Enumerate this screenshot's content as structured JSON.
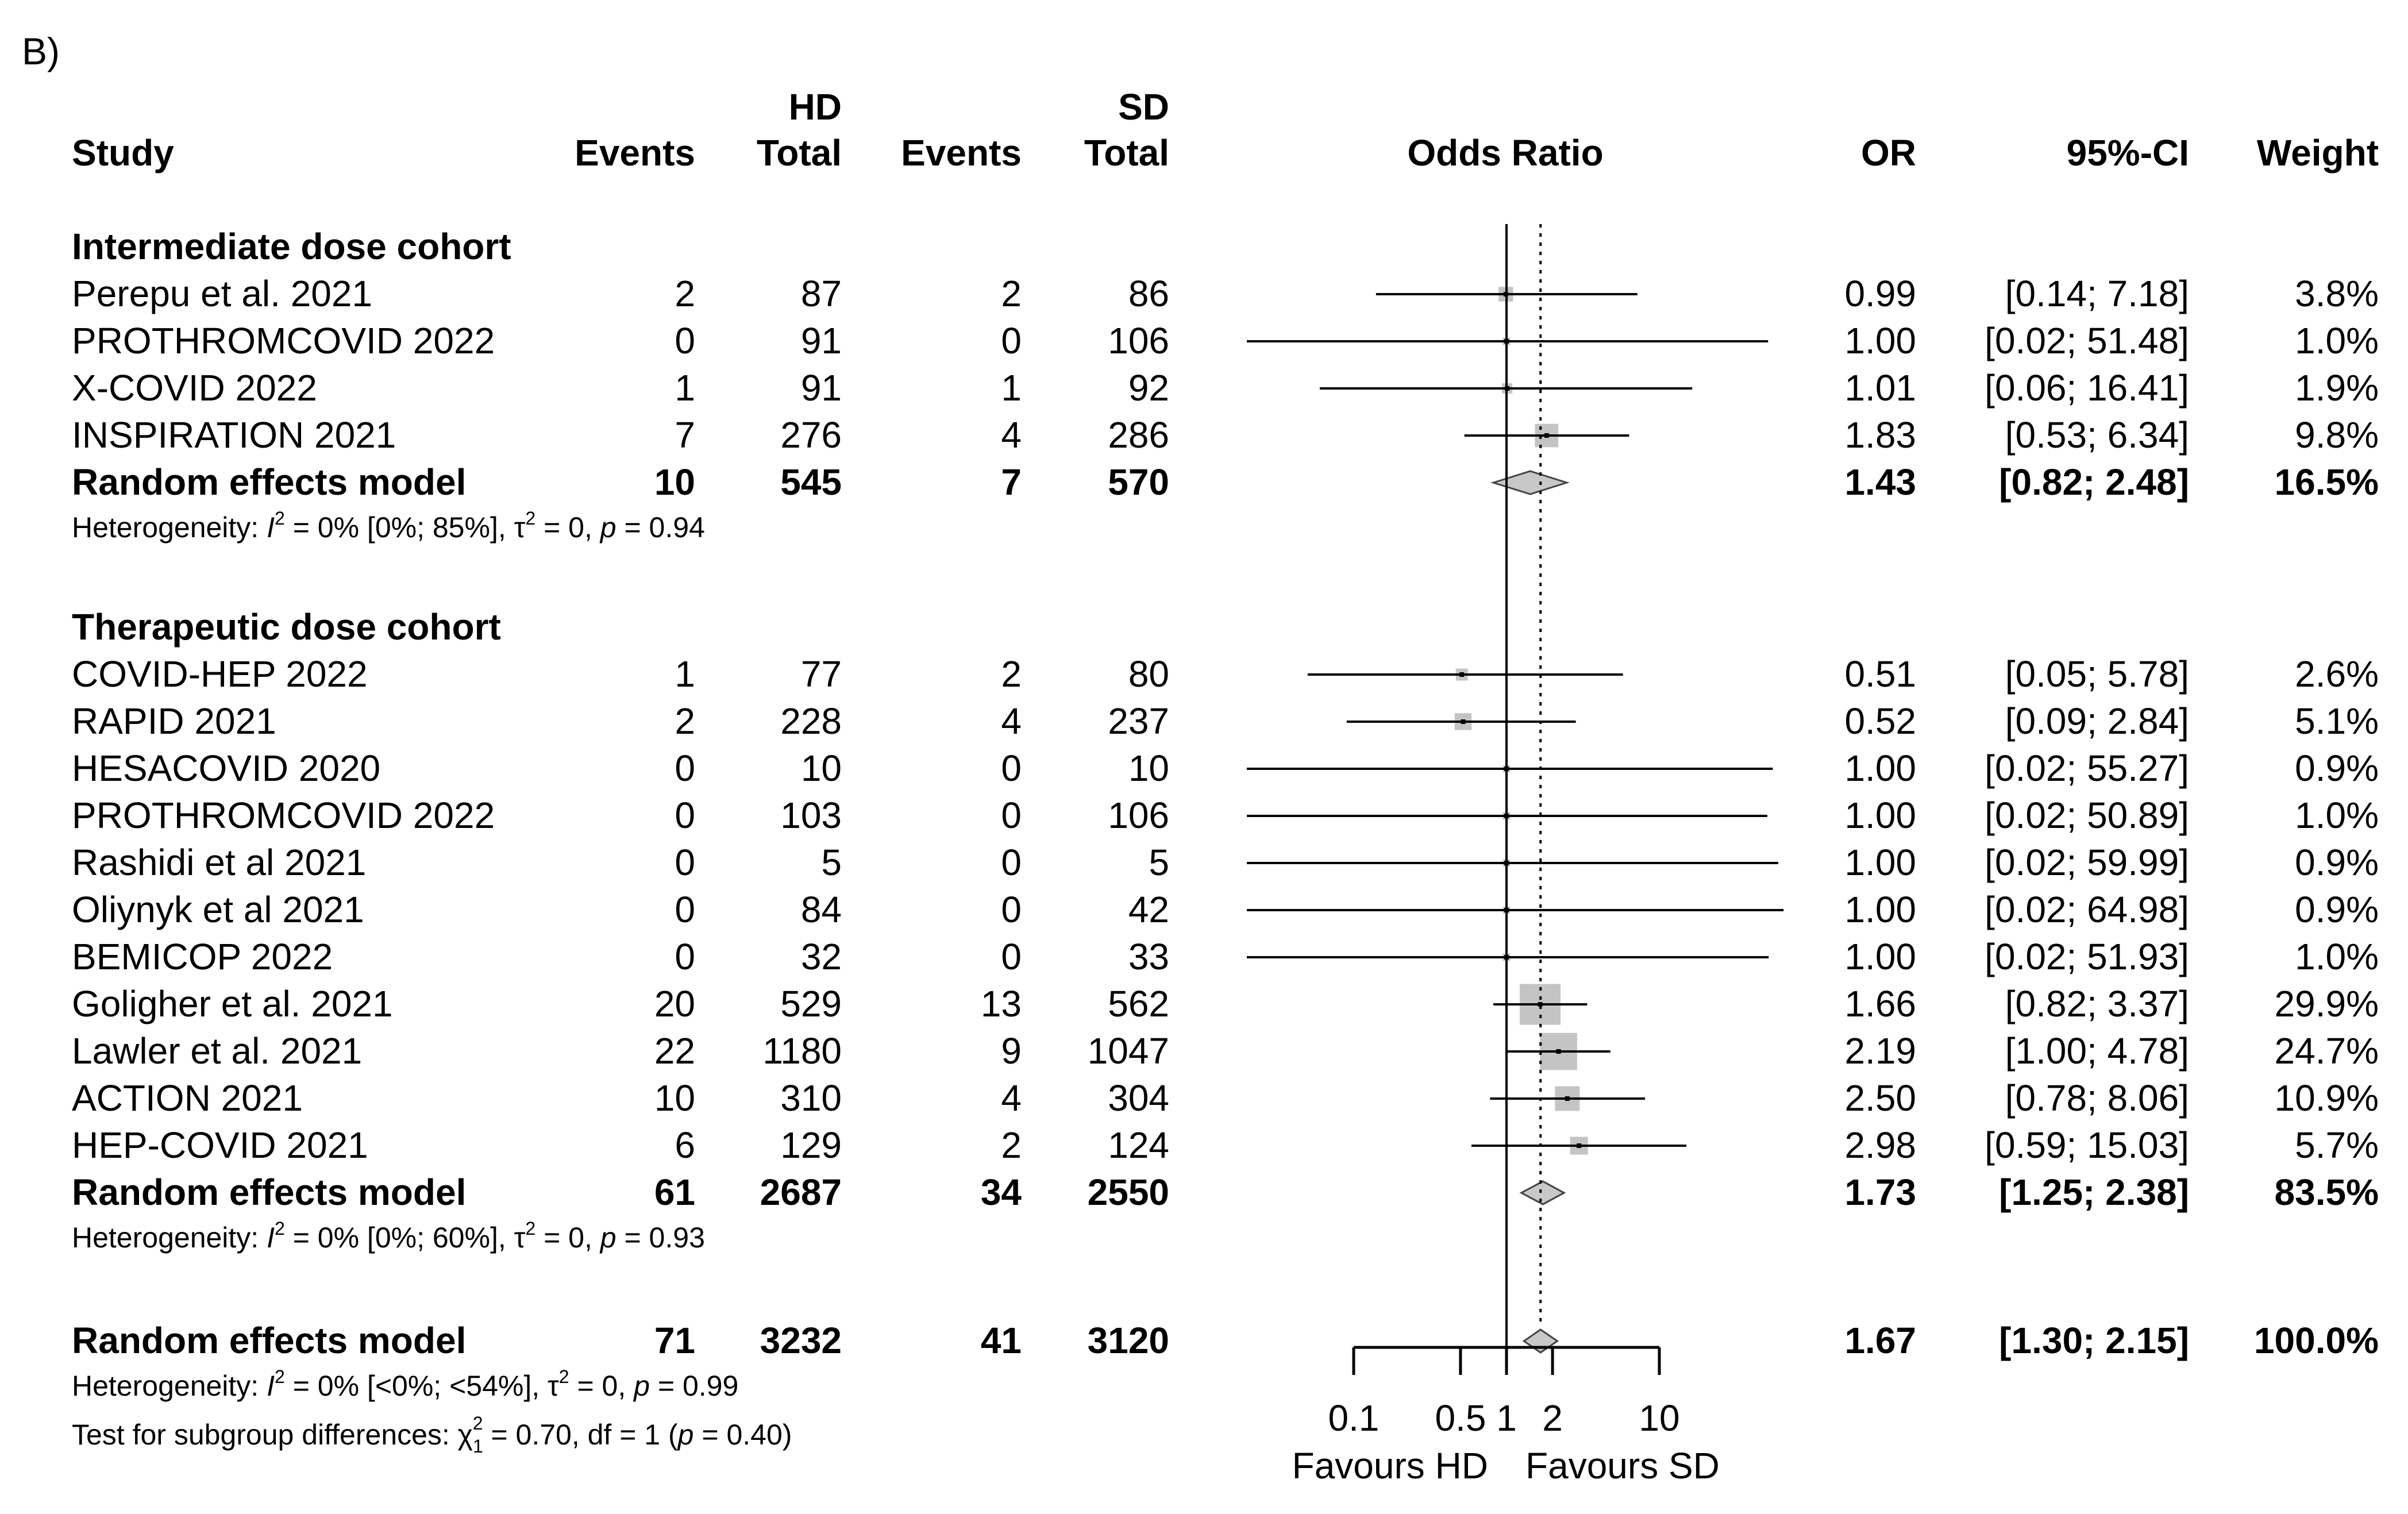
{
  "panel_label": "B)",
  "chart_data": {
    "type": "forest",
    "title": "",
    "measure": "Odds Ratio",
    "group_labels": {
      "hd": "HD",
      "sd": "SD"
    },
    "columns": {
      "study": "Study",
      "hd_events": "Events",
      "hd_total": "Total",
      "sd_events": "Events",
      "sd_total": "Total",
      "plot": "Odds Ratio",
      "or": "OR",
      "ci": "95%-CI",
      "weight": "Weight"
    },
    "x_axis": {
      "scale": "log",
      "ticks": [
        0.1,
        0.5,
        1,
        2,
        10
      ],
      "tick_labels": [
        "0.1",
        "0.5",
        "1",
        "2",
        "10"
      ],
      "range": [
        0.1,
        10
      ],
      "reference_line": 1,
      "overall_line": 1.67,
      "label_left": "Favours HD",
      "label_right": "Favours SD"
    },
    "subgroups": [
      {
        "name": "Intermediate dose cohort",
        "studies": [
          {
            "study": "Perepu et al. 2021",
            "hd_events": "2",
            "hd_total": "87",
            "sd_events": "2",
            "sd_total": "86",
            "or": 0.99,
            "lo": 0.14,
            "hi": 7.18,
            "or_text": "0.99",
            "ci_text": "[0.14;  7.18]",
            "weight": 3.8,
            "weight_text": "3.8%"
          },
          {
            "study": "PROTHROMCOVID 2022",
            "hd_events": "0",
            "hd_total": "91",
            "sd_events": "0",
            "sd_total": "106",
            "or": 1.0,
            "lo": 0.02,
            "hi": 51.48,
            "or_text": "1.00",
            "ci_text": "[0.02; 51.48]",
            "weight": 1.0,
            "weight_text": "1.0%"
          },
          {
            "study": "X-COVID 2022",
            "hd_events": "1",
            "hd_total": "91",
            "sd_events": "1",
            "sd_total": "92",
            "or": 1.01,
            "lo": 0.06,
            "hi": 16.41,
            "or_text": "1.01",
            "ci_text": "[0.06; 16.41]",
            "weight": 1.9,
            "weight_text": "1.9%"
          },
          {
            "study": "INSPIRATION 2021",
            "hd_events": "7",
            "hd_total": "276",
            "sd_events": "4",
            "sd_total": "286",
            "or": 1.83,
            "lo": 0.53,
            "hi": 6.34,
            "or_text": "1.83",
            "ci_text": "[0.53;  6.34]",
            "weight": 9.8,
            "weight_text": "9.8%"
          }
        ],
        "pooled": {
          "study": "Random effects model",
          "hd_events": "10",
          "hd_total": "545",
          "sd_events": "7",
          "sd_total": "570",
          "or": 1.43,
          "lo": 0.82,
          "hi": 2.48,
          "or_text": "1.43",
          "ci_text": "[0.82;  2.48]",
          "weight_text": "16.5%"
        },
        "heterogeneity": {
          "prefix": "Heterogeneity: ",
          "i_letter": "I",
          "i_sup": "2",
          "mid": " = 0% [0%; 85%], τ",
          "tau_sup": "2",
          "post": " = 0, ",
          "p_letter": "p",
          "p_val": " = 0.94"
        }
      },
      {
        "name": "Therapeutic dose cohort",
        "studies": [
          {
            "study": "COVID-HEP 2022",
            "hd_events": "1",
            "hd_total": "77",
            "sd_events": "2",
            "sd_total": "80",
            "or": 0.51,
            "lo": 0.05,
            "hi": 5.78,
            "or_text": "0.51",
            "ci_text": "[0.05;  5.78]",
            "weight": 2.6,
            "weight_text": "2.6%"
          },
          {
            "study": "RAPID 2021",
            "hd_events": "2",
            "hd_total": "228",
            "sd_events": "4",
            "sd_total": "237",
            "or": 0.52,
            "lo": 0.09,
            "hi": 2.84,
            "or_text": "0.52",
            "ci_text": "[0.09;  2.84]",
            "weight": 5.1,
            "weight_text": "5.1%"
          },
          {
            "study": "HESACOVID 2020",
            "hd_events": "0",
            "hd_total": "10",
            "sd_events": "0",
            "sd_total": "10",
            "or": 1.0,
            "lo": 0.02,
            "hi": 55.27,
            "or_text": "1.00",
            "ci_text": "[0.02; 55.27]",
            "weight": 0.9,
            "weight_text": "0.9%"
          },
          {
            "study": "PROTHROMCOVID 2022",
            "hd_events": "0",
            "hd_total": "103",
            "sd_events": "0",
            "sd_total": "106",
            "or": 1.0,
            "lo": 0.02,
            "hi": 50.89,
            "or_text": "1.00",
            "ci_text": "[0.02; 50.89]",
            "weight": 1.0,
            "weight_text": "1.0%"
          },
          {
            "study": "Rashidi et al  2021",
            "hd_events": "0",
            "hd_total": "5",
            "sd_events": "0",
            "sd_total": "5",
            "or": 1.0,
            "lo": 0.02,
            "hi": 59.99,
            "or_text": "1.00",
            "ci_text": "[0.02; 59.99]",
            "weight": 0.9,
            "weight_text": "0.9%"
          },
          {
            "study": "Oliynyk et al 2021",
            "hd_events": "0",
            "hd_total": "84",
            "sd_events": "0",
            "sd_total": "42",
            "or": 1.0,
            "lo": 0.02,
            "hi": 64.98,
            "or_text": "1.00",
            "ci_text": "[0.02; 64.98]",
            "weight": 0.9,
            "weight_text": "0.9%"
          },
          {
            "study": "BEMICOP 2022",
            "hd_events": "0",
            "hd_total": "32",
            "sd_events": "0",
            "sd_total": "33",
            "or": 1.0,
            "lo": 0.02,
            "hi": 51.93,
            "or_text": "1.00",
            "ci_text": "[0.02; 51.93]",
            "weight": 1.0,
            "weight_text": "1.0%"
          },
          {
            "study": "Goligher et al. 2021",
            "hd_events": "20",
            "hd_total": "529",
            "sd_events": "13",
            "sd_total": "562",
            "or": 1.66,
            "lo": 0.82,
            "hi": 3.37,
            "or_text": "1.66",
            "ci_text": "[0.82;  3.37]",
            "weight": 29.9,
            "weight_text": "29.9%"
          },
          {
            "study": "Lawler et al. 2021",
            "hd_events": "22",
            "hd_total": "1180",
            "sd_events": "9",
            "sd_total": "1047",
            "or": 2.19,
            "lo": 1.0,
            "hi": 4.78,
            "or_text": "2.19",
            "ci_text": "[1.00;  4.78]",
            "weight": 24.7,
            "weight_text": "24.7%"
          },
          {
            "study": "ACTION 2021",
            "hd_events": "10",
            "hd_total": "310",
            "sd_events": "4",
            "sd_total": "304",
            "or": 2.5,
            "lo": 0.78,
            "hi": 8.06,
            "or_text": "2.50",
            "ci_text": "[0.78;  8.06]",
            "weight": 10.9,
            "weight_text": "10.9%"
          },
          {
            "study": "HEP-COVID 2021",
            "hd_events": "6",
            "hd_total": "129",
            "sd_events": "2",
            "sd_total": "124",
            "or": 2.98,
            "lo": 0.59,
            "hi": 15.03,
            "or_text": "2.98",
            "ci_text": "[0.59; 15.03]",
            "weight": 5.7,
            "weight_text": "5.7%"
          }
        ],
        "pooled": {
          "study": "Random effects model",
          "hd_events": "61",
          "hd_total": "2687",
          "sd_events": "34",
          "sd_total": "2550",
          "or": 1.73,
          "lo": 1.25,
          "hi": 2.38,
          "or_text": "1.73",
          "ci_text": "[1.25;  2.38]",
          "weight_text": "83.5%"
        },
        "heterogeneity": {
          "prefix": "Heterogeneity: ",
          "i_letter": "I",
          "i_sup": "2",
          "mid": " = 0% [0%; 60%], τ",
          "tau_sup": "2",
          "post": " = 0, ",
          "p_letter": "p",
          "p_val": " = 0.93"
        }
      }
    ],
    "overall": {
      "study": "Random effects model",
      "hd_events": "71",
      "hd_total": "3232",
      "sd_events": "41",
      "sd_total": "3120",
      "or": 1.67,
      "lo": 1.3,
      "hi": 2.15,
      "or_text": "1.67",
      "ci_text": "[1.30;  2.15]",
      "weight_text": "100.0%"
    },
    "overall_heterogeneity": {
      "prefix": "Heterogeneity: ",
      "i_letter": "I",
      "i_sup": "2",
      "mid": " = 0% [<0%; <54%], τ",
      "tau_sup": "2",
      "post": " = 0, ",
      "p_letter": "p",
      "p_val": " = 0.99"
    },
    "subgroup_test": {
      "prefix": "Test for subgroup differences: χ",
      "sub": "1",
      "sup": "2",
      "post": " = 0.70, df = 1 (",
      "p_letter": "p",
      "p_val": " = 0.40)"
    }
  }
}
